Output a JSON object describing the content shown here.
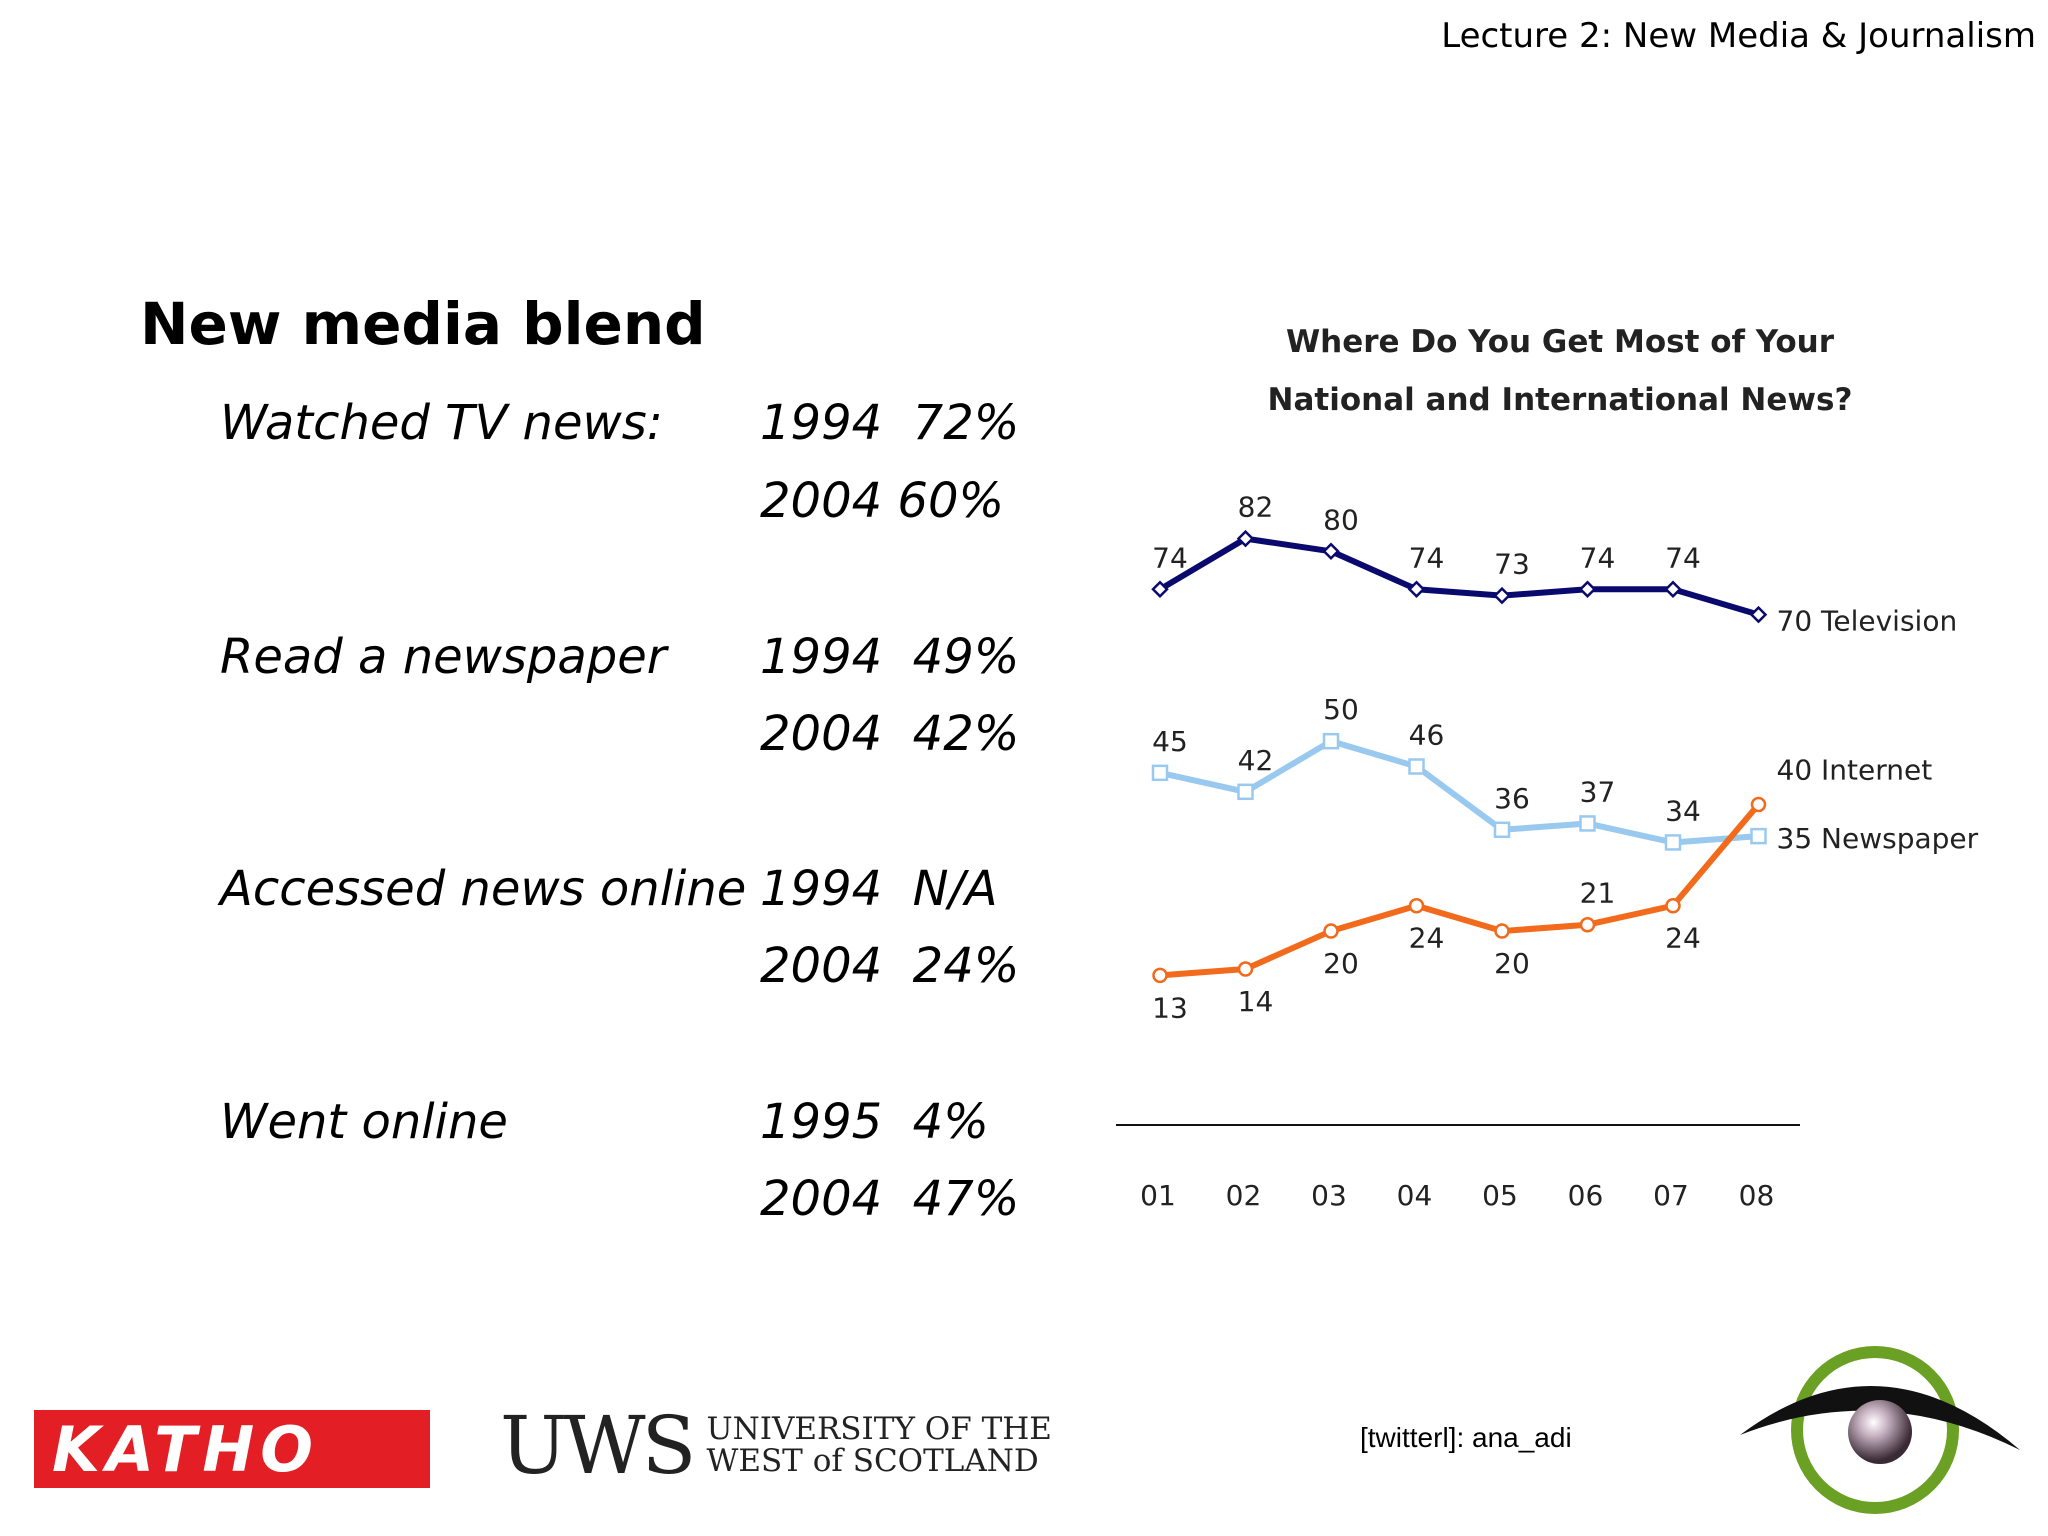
{
  "header": {
    "title": "Lecture 2: New Media & Journalism"
  },
  "slide": {
    "title": "New media blend"
  },
  "stats": [
    {
      "label": "Watched TV news:",
      "rows": [
        "1994  72%",
        "2004 60%"
      ]
    },
    {
      "label": "Read a newspaper",
      "rows": [
        "1994  49%",
        "2004  42%"
      ]
    },
    {
      "label": "Accessed news online",
      "rows": [
        "1994  N/A",
        "2004  24%"
      ]
    },
    {
      "label": "Went online",
      "rows": [
        "1995  4%",
        "2004  47%"
      ]
    }
  ],
  "chart_data": {
    "type": "line",
    "title": "Where Do You Get Most of Your National and International News?",
    "title_lines": [
      "Where Do You Get Most of Your",
      "National and International News?"
    ],
    "categories": [
      "01",
      "02",
      "03",
      "04",
      "05",
      "06",
      "07",
      "08"
    ],
    "series": [
      {
        "name": "Television",
        "color": "#0a0a6e",
        "marker": "diamond",
        "values": [
          74,
          82,
          80,
          74,
          73,
          74,
          74,
          70
        ]
      },
      {
        "name": "Newspaper",
        "color": "#99c9ef",
        "marker": "square",
        "values": [
          45,
          42,
          50,
          46,
          36,
          37,
          34,
          35
        ]
      },
      {
        "name": "Internet",
        "color": "#f26a1b",
        "marker": "circle",
        "values": [
          13,
          14,
          20,
          24,
          20,
          21,
          24,
          40
        ]
      }
    ],
    "end_labels": [
      "70 Television",
      "35 Newspaper",
      "40 Internet"
    ],
    "ylim": [
      5,
      90
    ],
    "grid": false,
    "legend": "none"
  },
  "footer": {
    "katho": "KATHO",
    "uws_abbr": "UWS",
    "uws_name": "UNIVERSITY OF THE\nWEST of SCOTLAND",
    "twitter": "[twitterl]: ana_adi"
  }
}
